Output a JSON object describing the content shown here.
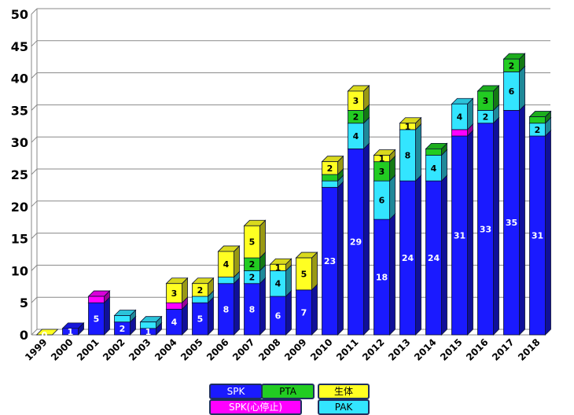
{
  "chart_data": {
    "type": "bar",
    "stacked": true,
    "title": "",
    "xlabel": "",
    "ylabel": "",
    "ylim": [
      0,
      50
    ],
    "yticks": [
      0,
      5,
      10,
      15,
      20,
      25,
      30,
      35,
      40,
      45,
      50
    ],
    "grid": true,
    "legend_position": "bottom",
    "categories": [
      "1999",
      "2000",
      "2001",
      "2002",
      "2003",
      "2004",
      "2005",
      "2006",
      "2007",
      "2008",
      "2009",
      "2010",
      "2011",
      "2012",
      "2013",
      "2014",
      "2015",
      "2016",
      "2017",
      "2018"
    ],
    "series": [
      {
        "name": "SPK",
        "color": "#1a1aff",
        "values": [
          0,
          1,
          5,
          2,
          1,
          4,
          5,
          8,
          8,
          6,
          7,
          23,
          29,
          18,
          24,
          24,
          31,
          33,
          35,
          31
        ]
      },
      {
        "name": "SPK(心停止)",
        "color": "#ff00ff",
        "values": [
          0,
          0,
          1,
          0,
          0,
          1,
          0,
          0,
          0,
          0,
          0,
          0,
          0,
          0,
          0,
          0,
          1,
          0,
          0,
          0
        ]
      },
      {
        "name": "PAK",
        "color": "#33e5ff",
        "values": [
          0,
          0,
          0,
          1,
          1,
          0,
          1,
          1,
          2,
          4,
          0,
          1,
          4,
          6,
          8,
          4,
          4,
          2,
          6,
          2
        ]
      },
      {
        "name": "PTA",
        "color": "#22cc22",
        "values": [
          0,
          0,
          0,
          0,
          0,
          0,
          0,
          0,
          2,
          0,
          0,
          1,
          2,
          3,
          0,
          1,
          0,
          3,
          2,
          1
        ]
      },
      {
        "name": "生体",
        "color": "#ffff22",
        "values": [
          0,
          0,
          0,
          0,
          0,
          3,
          2,
          4,
          5,
          1,
          5,
          2,
          3,
          1,
          1,
          0,
          0,
          0,
          0,
          0
        ]
      }
    ],
    "data_labels": [
      {
        "series": "SPK",
        "values": [
          0,
          1,
          5,
          2,
          1,
          4,
          5,
          8,
          8,
          6,
          7,
          23,
          29,
          18,
          24,
          24,
          31,
          33,
          35,
          31
        ]
      },
      {
        "series": "PAK",
        "values": [
          null,
          null,
          null,
          null,
          null,
          null,
          null,
          null,
          2,
          4,
          null,
          null,
          4,
          6,
          8,
          4,
          4,
          2,
          6,
          2
        ]
      },
      {
        "series": "PTA",
        "values": [
          null,
          null,
          null,
          null,
          null,
          null,
          null,
          null,
          2,
          null,
          null,
          null,
          2,
          3,
          null,
          null,
          null,
          3,
          2,
          null
        ]
      },
      {
        "series": "生体",
        "values": [
          null,
          null,
          null,
          null,
          null,
          3,
          2,
          4,
          5,
          1,
          5,
          2,
          3,
          1,
          1,
          null,
          null,
          null,
          null,
          null
        ]
      }
    ]
  },
  "legend": {
    "items": [
      {
        "name": "SPK",
        "color": "#1a1aff",
        "text_color": "#ffffff"
      },
      {
        "name": "PTA",
        "color": "#22cc22",
        "text_color": "#000000"
      },
      {
        "name": "生体",
        "color": "#ffff22",
        "text_color": "#000000"
      },
      {
        "name": "SPK(心停止)",
        "color": "#ff00ff",
        "text_color": "#ffffff"
      },
      {
        "name": "PAK",
        "color": "#33e5ff",
        "text_color": "#000000"
      }
    ]
  }
}
